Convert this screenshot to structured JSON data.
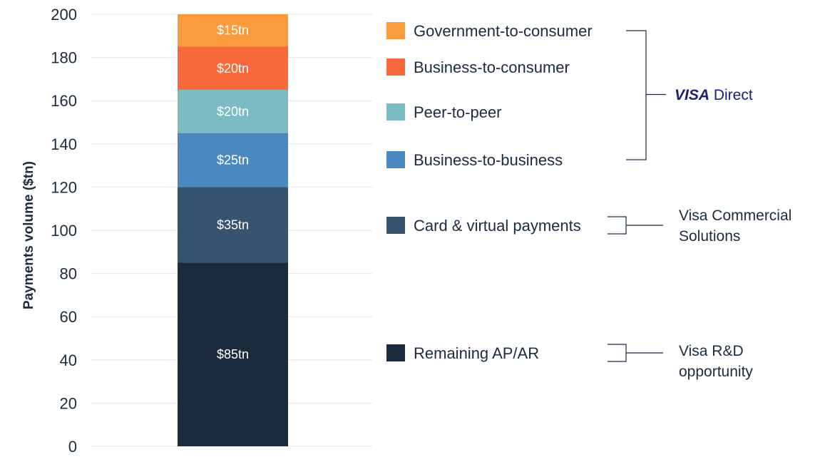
{
  "chart_data": {
    "type": "bar",
    "stacked": true,
    "ylabel": "Payments volume ($tn)",
    "ylim": [
      0,
      200
    ],
    "yticks": [
      0,
      20,
      40,
      60,
      80,
      100,
      120,
      140,
      160,
      180,
      200
    ],
    "grid": true,
    "series": [
      {
        "name": "Remaining AP/AR",
        "value": 85,
        "label": "$85tn",
        "color": "#1b2b3e"
      },
      {
        "name": "Card & virtual payments",
        "value": 35,
        "label": "$35tn",
        "color": "#37546f"
      },
      {
        "name": "Business-to-business",
        "value": 25,
        "label": "$25tn",
        "color": "#4a88c2"
      },
      {
        "name": "Peer-to-peer",
        "value": 20,
        "label": "$20tn",
        "color": "#7bbcc4"
      },
      {
        "name": "Business-to-consumer",
        "value": 20,
        "label": "$20tn",
        "color": "#f9693b"
      },
      {
        "name": "Government-to-consumer",
        "value": 15,
        "label": "$15tn",
        "color": "#f99a3c"
      }
    ],
    "groups": [
      {
        "id": "visa-direct",
        "brand_bold": "VISA",
        "brand_rest": " Direct",
        "members": [
          "Government-to-consumer",
          "Business-to-consumer",
          "Peer-to-peer",
          "Business-to-business"
        ]
      },
      {
        "id": "commercial",
        "lines": [
          "Visa Commercial",
          "Solutions"
        ],
        "members": [
          "Card & virtual payments"
        ]
      },
      {
        "id": "rnd",
        "lines": [
          "Visa R&D",
          "opportunity"
        ],
        "members": [
          "Remaining AP/AR"
        ]
      }
    ]
  }
}
